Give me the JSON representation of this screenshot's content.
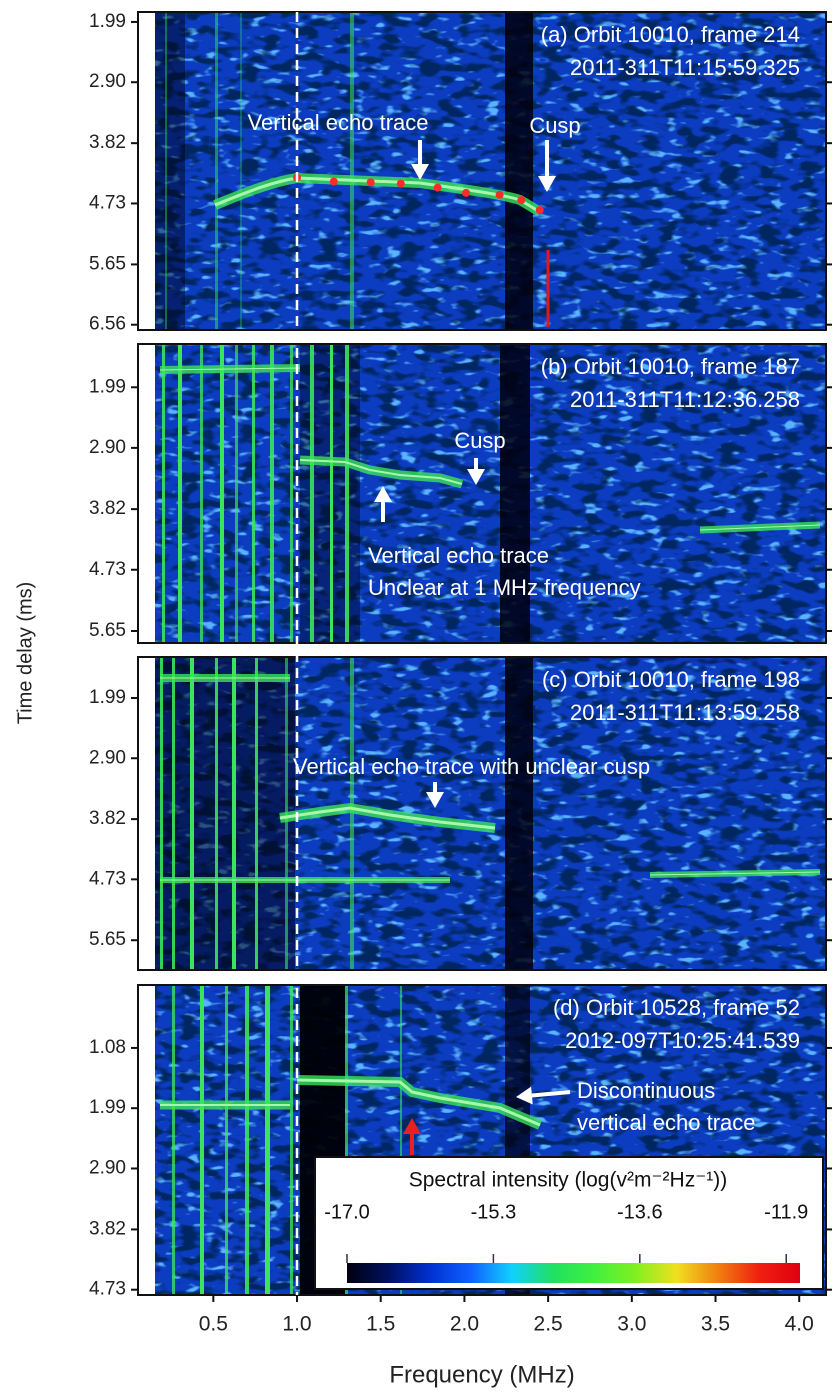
{
  "ylabel": "Time delay (ms)",
  "xlabel": "Frequency (MHz)",
  "colorbar": {
    "title": "Spectral intensity (log(v²m⁻²Hz⁻¹))",
    "clim": [
      -17.0,
      -11.74
    ],
    "ticks": [
      {
        "value": -17.0,
        "label": "-17.0"
      },
      {
        "value": -15.3,
        "label": "-15.3"
      },
      {
        "value": -13.6,
        "label": "-13.6"
      },
      {
        "value": -11.9,
        "label": "-11.9"
      }
    ],
    "colormap": [
      "#000010",
      "#001060",
      "#0030d0",
      "#1060ff",
      "#10d0ff",
      "#20e060",
      "#40f040",
      "#80f020",
      "#f0e020",
      "#f08010",
      "#f02010",
      "#e00010"
    ]
  },
  "chart_data": [
    {
      "type": "spectrogram",
      "title": "(a) Orbit 10010, frame 214",
      "subtitle": "2011-311T11:15:59.325",
      "xlim": [
        0.05,
        4.16
      ],
      "ylim": [
        1.84,
        6.64
      ],
      "y_inverted": true,
      "yticks": [
        1.99,
        {
          "value": 2.9,
          "label": "2.90"
        },
        3.82,
        4.73,
        5.65,
        6.56
      ],
      "annotations": [
        "Vertical echo trace",
        "Cusp"
      ],
      "markers": {
        "color": "#ff2a2a",
        "x": [
          1.0,
          1.22,
          1.44,
          1.62,
          1.84,
          2.01,
          2.21,
          2.34,
          2.45
        ],
        "values": [
          4.34,
          4.4,
          4.41,
          4.43,
          4.49,
          4.57,
          4.6,
          4.68,
          4.83
        ]
      }
    },
    {
      "type": "spectrogram",
      "title": "(b) Orbit 10010, frame 187",
      "subtitle": "2011-311T11:12:36.258",
      "xlim": [
        0.05,
        4.16
      ],
      "ylim": [
        1.34,
        5.83
      ],
      "y_inverted": true,
      "yticks": [
        1.99,
        {
          "value": 2.9,
          "label": "2.90"
        },
        3.82,
        4.73,
        5.65
      ],
      "annotations": [
        "Cusp",
        "Vertical echo trace",
        "Unclear at 1 MHz frequency"
      ]
    },
    {
      "type": "spectrogram",
      "title": "(c) Orbit 10010, frame 198",
      "subtitle": "2011-311T11:13:59.258",
      "xlim": [
        0.05,
        4.16
      ],
      "ylim": [
        1.37,
        6.1
      ],
      "y_inverted": true,
      "yticks": [
        1.99,
        {
          "value": 2.9,
          "label": "2.90"
        },
        3.82,
        4.73,
        5.65
      ],
      "annotations": [
        "Vertical echo trace with unclear cusp"
      ]
    },
    {
      "type": "spectrogram",
      "title": "(d) Orbit 10528, frame 52",
      "subtitle": "2012-097T10:25:41.539",
      "xlim": [
        0.05,
        4.16
      ],
      "ylim": [
        0.13,
        4.81
      ],
      "y_inverted": true,
      "yticks": [
        1.08,
        1.99,
        {
          "value": 2.9,
          "label": "2.90"
        },
        3.82,
        4.73
      ],
      "xticks": [
        0.5,
        {
          "value": 1,
          "label": "1.0"
        },
        1.5,
        {
          "value": 2,
          "label": "2.0"
        },
        2.5,
        {
          "value": 3,
          "label": "3.0"
        },
        3.5,
        {
          "value": 4,
          "label": "4.0"
        }
      ],
      "annotations": [
        "Discontinuous",
        "vertical echo trace"
      ]
    }
  ]
}
